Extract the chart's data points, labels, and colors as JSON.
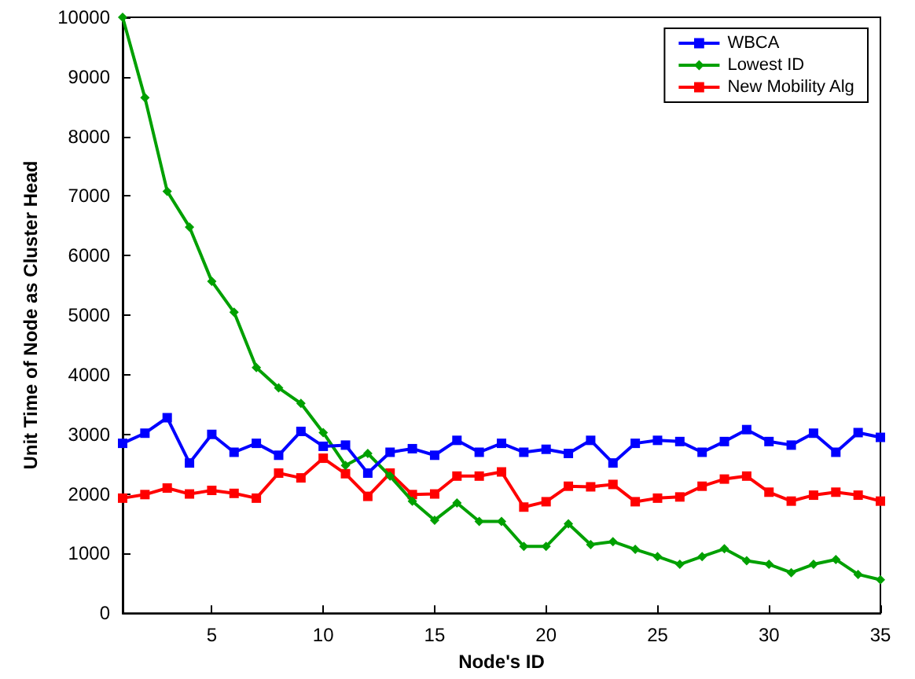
{
  "chart_data": {
    "type": "line",
    "xlabel": "Node's ID",
    "ylabel": "Unit Time of Node as Cluster Head",
    "x": [
      1,
      2,
      3,
      4,
      5,
      6,
      7,
      8,
      9,
      10,
      11,
      12,
      13,
      14,
      15,
      16,
      17,
      18,
      19,
      20,
      21,
      22,
      23,
      24,
      25,
      26,
      27,
      28,
      29,
      30,
      31,
      32,
      33,
      34,
      35
    ],
    "series": [
      {
        "name": "WBCA",
        "color": "#0000ff",
        "marker": "square",
        "values": [
          2850,
          3020,
          3280,
          2520,
          3000,
          2700,
          2850,
          2650,
          3050,
          2800,
          2820,
          2350,
          2700,
          2760,
          2650,
          2900,
          2700,
          2850,
          2700,
          2750,
          2680,
          2900,
          2520,
          2850,
          2900,
          2880,
          2700,
          2880,
          3080,
          2880,
          2820,
          3020,
          2700,
          3030,
          2950
        ]
      },
      {
        "name": "Lowest ID",
        "color": "#00a000",
        "marker": "diamond",
        "values": [
          10000,
          8650,
          7080,
          6480,
          5570,
          5050,
          4120,
          3780,
          3520,
          3030,
          2480,
          2680,
          2300,
          1880,
          1560,
          1850,
          1540,
          1540,
          1120,
          1120,
          1500,
          1150,
          1200,
          1070,
          950,
          820,
          950,
          1080,
          880,
          820,
          680,
          820,
          900,
          650,
          560
        ]
      },
      {
        "name": "New Mobility Alg",
        "color": "#ff0000",
        "marker": "square",
        "values": [
          1930,
          1990,
          2100,
          2000,
          2060,
          2010,
          1930,
          2350,
          2270,
          2600,
          2340,
          1960,
          2350,
          1990,
          2000,
          2300,
          2300,
          2370,
          1780,
          1870,
          2130,
          2120,
          2160,
          1870,
          1930,
          1950,
          2130,
          2250,
          2300,
          2030,
          1880,
          1980,
          2030,
          1980,
          1880
        ]
      }
    ],
    "xlim": [
      1,
      35
    ],
    "xticks": [
      5,
      10,
      15,
      20,
      25,
      30,
      35
    ],
    "ylim": [
      0,
      10000
    ],
    "yticks": [
      0,
      1000,
      2000,
      3000,
      4000,
      5000,
      6000,
      7000,
      8000,
      9000,
      10000
    ],
    "grid": false,
    "legend": "top right",
    "line_style": "solid"
  }
}
